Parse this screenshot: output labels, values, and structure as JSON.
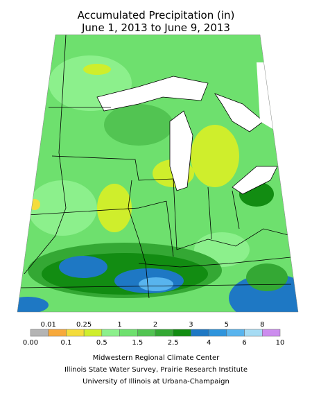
{
  "header": {
    "title": "Accumulated Precipitation (in)",
    "subtitle": "June 1, 2013 to June 9, 2013"
  },
  "legend": {
    "upper_labels": [
      "0.01",
      "0.25",
      "1",
      "2",
      "3",
      "5",
      "8"
    ],
    "lower_labels": [
      "0.00",
      "0.1",
      "0.5",
      "1.5",
      "2.5",
      "4",
      "6",
      "10"
    ],
    "colors": [
      "#b4b4b4",
      "#f7a93c",
      "#f4dc3c",
      "#cfee2c",
      "#8cf08c",
      "#6ee06e",
      "#52c452",
      "#34a834",
      "#128c12",
      "#1e78c4",
      "#2e94dc",
      "#58b4ee",
      "#a6dcf4",
      "#cc8cee"
    ]
  },
  "credits": [
    "Midwestern Regional Climate Center",
    "Illinois State Water Survey, Prairie Research Institute",
    "University of Illinois at Urbana-Champaign"
  ]
}
